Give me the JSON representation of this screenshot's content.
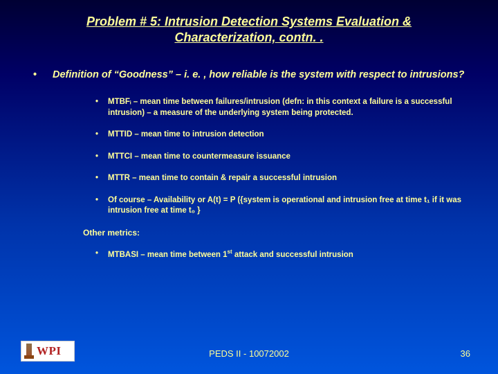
{
  "title_line1": "Problem # 5:  Intrusion Detection Systems Evaluation &",
  "title_line2": "Characterization, contn. .",
  "main_point": "Definition of “Goodness” – i. e. , how reliable is the system with respect to intrusions?",
  "items": [
    "MTBFᵢ – mean time between failures/intrusion (defn: in this context a failure is a successful intrusion) – a measure of the underlying system being protected.",
    "MTTID – mean time to intrusion detection",
    "MTTCI – mean time to countermeasure issuance",
    "MTTR – mean time to contain & repair a successful intrusion",
    "Of course – Availability or A(t) = P ({system is operational and intrusion free at time t₁ if it was intrusion free at time  t₀ }"
  ],
  "other_metrics_label": "Other metrics:",
  "other_metric_item_pre": "MTBASI – mean time between 1",
  "other_metric_item_sup": "st",
  "other_metric_item_post": " attack and successful intrusion",
  "footer_center": "PEDS II - 10072002",
  "slide_number": "36",
  "logo_text": "WPI",
  "colors": {
    "text": "#ffff99",
    "bg_top": "#000033",
    "bg_bottom": "#0055dd",
    "logo_bg": "#ffffff",
    "logo_text": "#b22222"
  }
}
